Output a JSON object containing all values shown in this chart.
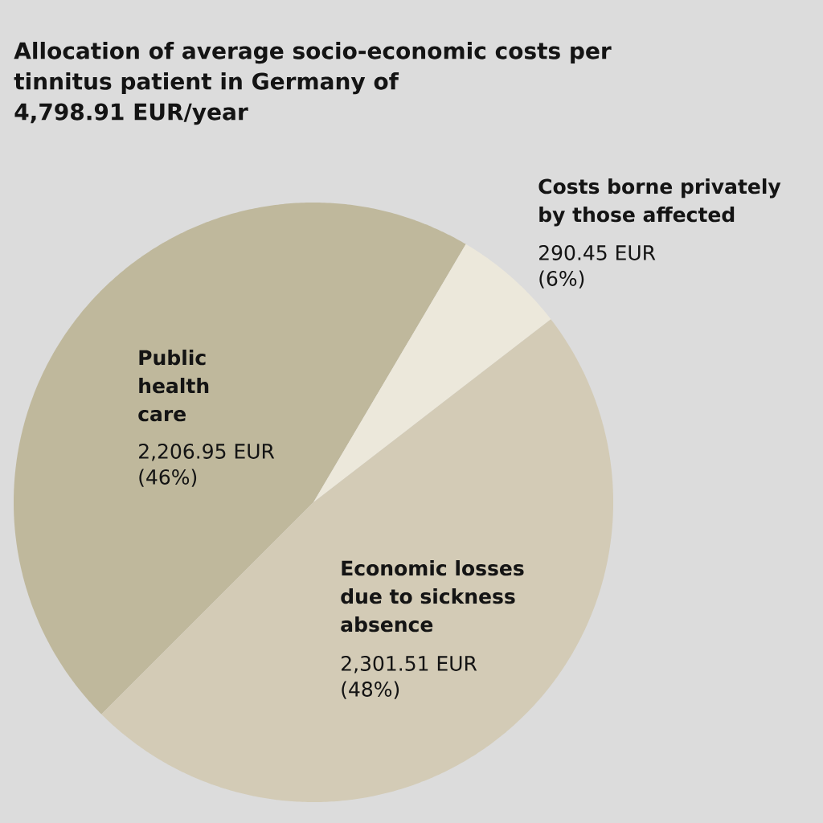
{
  "chart_data": {
    "type": "pie",
    "title": "Allocation of average socio-economic costs per tinnitus patient in Germany of 4,798.91 EUR/year",
    "categories": [
      "Public health care",
      "Costs borne privately by those affected",
      "Economic losses due to sickness absence"
    ],
    "values": [
      2206.95,
      290.45,
      2301.51
    ],
    "colors": [
      "#bfb89c",
      "#ece8db",
      "#d3cbb6"
    ],
    "value_labels": [
      "2,206.95 EUR (46%)",
      "290.45 EUR (6%)",
      "2,301.51 EUR (48%)"
    ]
  }
}
